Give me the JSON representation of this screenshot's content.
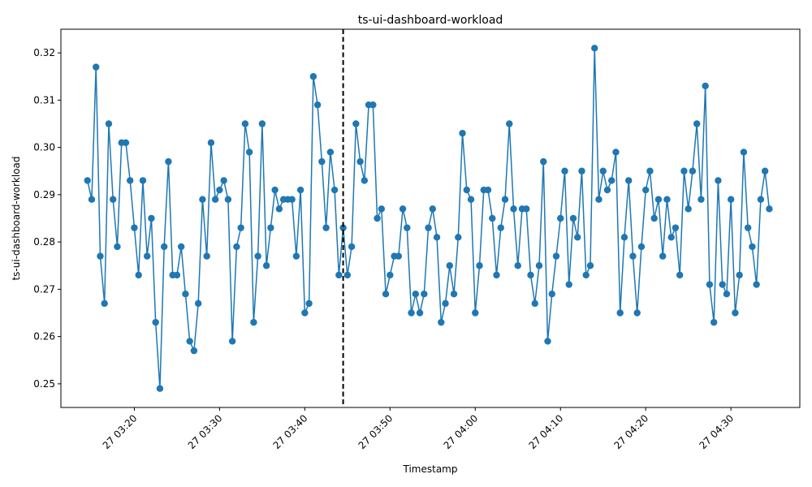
{
  "chart_data": {
    "type": "line",
    "title": "ts-ui-dashboard-workload",
    "xlabel": "Timestamp",
    "ylabel": "ts-ui-dashboard-workload",
    "x_start": "27 03:14:30",
    "x_step_seconds": 30,
    "xlim": [
      "27 03:11:23",
      "27 04:38:05"
    ],
    "ylim": [
      0.245,
      0.325
    ],
    "x_ticks": [
      "27 03:20",
      "27 03:30",
      "27 03:40",
      "27 03:50",
      "27 04:00",
      "27 04:10",
      "27 04:20",
      "27 04:30"
    ],
    "y_ticks": [
      "0.25",
      "0.26",
      "0.27",
      "0.28",
      "0.29",
      "0.30",
      "0.31",
      "0.32"
    ],
    "grid": false,
    "marker": "circle",
    "line_color": "#1f77b4",
    "vline": {
      "x": "27 03:44:30",
      "style": "dashed",
      "color": "#000000"
    },
    "series": [
      {
        "values": [
          0.293,
          0.289,
          0.317,
          0.277,
          0.267,
          0.305,
          0.289,
          0.279,
          0.301,
          0.301,
          0.293,
          0.283,
          0.273,
          0.293,
          0.277,
          0.285,
          0.263,
          0.249,
          0.279,
          0.297,
          0.273,
          0.273,
          0.279,
          0.269,
          0.259,
          0.257,
          0.267,
          0.289,
          0.277,
          0.301,
          0.289,
          0.291,
          0.293,
          0.289,
          0.259,
          0.279,
          0.283,
          0.305,
          0.299,
          0.263,
          0.277,
          0.305,
          0.275,
          0.283,
          0.291,
          0.287,
          0.289,
          0.289,
          0.289,
          0.277,
          0.291,
          0.265,
          0.267,
          0.315,
          0.309,
          0.297,
          0.283,
          0.299,
          0.291,
          0.273,
          0.283,
          0.273,
          0.279,
          0.305,
          0.297,
          0.293,
          0.309,
          0.309,
          0.285,
          0.287,
          0.269,
          0.273,
          0.277,
          0.277,
          0.287,
          0.283,
          0.265,
          0.269,
          0.265,
          0.269,
          0.283,
          0.287,
          0.281,
          0.263,
          0.267,
          0.275,
          0.269,
          0.281,
          0.303,
          0.291,
          0.289,
          0.265,
          0.275,
          0.291,
          0.291,
          0.285,
          0.273,
          0.283,
          0.289,
          0.305,
          0.287,
          0.275,
          0.287,
          0.287,
          0.273,
          0.267,
          0.275,
          0.297,
          0.259,
          0.269,
          0.277,
          0.285,
          0.295,
          0.271,
          0.285,
          0.281,
          0.295,
          0.273,
          0.275,
          0.321,
          0.289,
          0.295,
          0.291,
          0.293,
          0.299,
          0.265,
          0.281,
          0.293,
          0.277,
          0.265,
          0.279,
          0.291,
          0.295,
          0.285,
          0.289,
          0.277,
          0.289,
          0.281,
          0.283,
          0.273,
          0.295,
          0.287,
          0.295,
          0.305,
          0.289,
          0.313,
          0.271,
          0.263,
          0.293,
          0.271,
          0.269,
          0.289,
          0.265,
          0.273,
          0.299,
          0.283,
          0.279,
          0.271,
          0.289,
          0.295,
          0.287
        ]
      }
    ]
  }
}
